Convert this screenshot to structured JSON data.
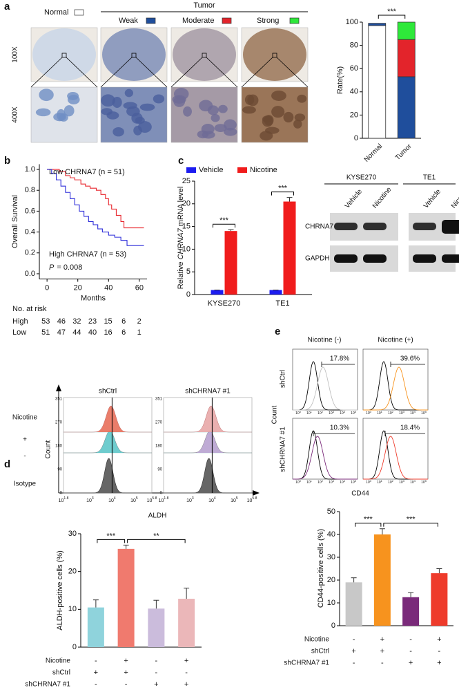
{
  "panel_labels": [
    "a",
    "b",
    "c",
    "d",
    "e"
  ],
  "ihc": {
    "tumor_header": "Tumor",
    "magnifications": [
      "100X",
      "400X"
    ]
  },
  "survival_risk": {
    "title": "No. at risk",
    "rows": [
      {
        "name": "High",
        "values": [
          53,
          46,
          32,
          23,
          15,
          6,
          2
        ]
      },
      {
        "name": "Low",
        "values": [
          51,
          47,
          44,
          40,
          16,
          6,
          1
        ]
      }
    ]
  },
  "blot": {
    "cell_lines": [
      "KYSE270",
      "TE1"
    ],
    "treatments": [
      "Vehicle",
      "Nicotine"
    ],
    "proteins": [
      "CHRNA7",
      "GAPDH"
    ]
  },
  "flow_aldh": {
    "columns": [
      "shCtrl",
      "shCHRNA7 #1"
    ],
    "rows": [
      "Nicotine",
      "+",
      "-",
      "Isotype"
    ],
    "ylabel": "Count",
    "xlabel": "ALDH",
    "yticks": [
      "0",
      "90",
      "180",
      "270",
      "351"
    ],
    "tick_base": "10",
    "tick_exponents": [
      "1.8",
      "3",
      "4",
      "5",
      "5.8"
    ]
  },
  "flow_cd44": {
    "columns": [
      "Nicotine (-)",
      "Nicotine (+)"
    ],
    "rows": [
      "shCtrl",
      "shCHRNA7 #1"
    ],
    "ylabel": "Count",
    "xlabel": "CD44",
    "gates": [
      "17.8%",
      "39.6%",
      "10.3%",
      "18.4%"
    ],
    "tick_base": "10",
    "tick_exponents": [
      "0",
      "1",
      "2",
      "3",
      "4",
      "5"
    ]
  },
  "chart_data": [
    {
      "type": "bar",
      "stacked": true,
      "ylabel": "Rate(%)",
      "categories": [
        "Normal",
        "Tumor"
      ],
      "series": [
        {
          "name": "Normal",
          "color": "#ffffff",
          "values": [
            97,
            0
          ]
        },
        {
          "name": "Weak",
          "color": "#1f4e9c",
          "values": [
            2,
            53
          ]
        },
        {
          "name": "Moderate",
          "color": "#e3242b",
          "values": [
            0,
            32
          ]
        },
        {
          "name": "Strong",
          "color": "#2ee83a",
          "values": [
            0,
            15
          ]
        }
      ],
      "ylim": [
        0,
        100
      ],
      "yticks": [
        0,
        20,
        40,
        60,
        80,
        100
      ],
      "grid": false,
      "comparisons": [
        {
          "label": "***",
          "categories": [
            0,
            1
          ]
        }
      ]
    },
    {
      "type": "line",
      "step": true,
      "xlabel": "Months",
      "ylabel": "Overall Survival",
      "series": [
        {
          "name": "Low CHRNA7 (n = 51)",
          "color": "#e8242b",
          "x": [
            0,
            8,
            12,
            15,
            18,
            22,
            25,
            28,
            32,
            35,
            38,
            40,
            42,
            45,
            48,
            50,
            63
          ],
          "values": [
            1.0,
            0.98,
            0.94,
            0.92,
            0.9,
            0.86,
            0.84,
            0.82,
            0.8,
            0.76,
            0.72,
            0.66,
            0.62,
            0.56,
            0.5,
            0.44,
            0.44
          ]
        },
        {
          "name": "High CHRNA7 (n = 53)",
          "color": "#2b2bd9",
          "x": [
            0,
            3,
            6,
            9,
            12,
            15,
            18,
            21,
            24,
            27,
            30,
            33,
            36,
            40,
            44,
            48,
            52,
            63
          ],
          "values": [
            1.0,
            0.96,
            0.9,
            0.84,
            0.78,
            0.72,
            0.66,
            0.6,
            0.55,
            0.5,
            0.47,
            0.43,
            0.4,
            0.37,
            0.35,
            0.32,
            0.27,
            0.27
          ]
        }
      ],
      "p_value": {
        "symbol": "P",
        "text": "= 0.008"
      },
      "xlim": [
        -5,
        65
      ],
      "xticks": [
        0,
        20,
        40,
        60
      ],
      "ylim": [
        -0.05,
        1.05
      ],
      "yticks": [
        {
          "value": 0,
          "label": "0.0"
        },
        0.2,
        0.4,
        0.6,
        0.8,
        {
          "value": 1,
          "label": "1.0"
        }
      ],
      "grid": false
    },
    {
      "type": "bar",
      "ylabel": [
        "Relative ",
        "CHRNA7",
        " mRNA level"
      ],
      "ylabel_italic": [
        false,
        true,
        false
      ],
      "categories": [
        "KYSE270",
        "TE1"
      ],
      "series": [
        {
          "name": "Vehicle",
          "color": "#1c1cf0",
          "values": [
            1,
            1
          ],
          "errors": [
            0,
            0
          ]
        },
        {
          "name": "Nicotine",
          "color": "#f01c1c",
          "values": [
            14,
            20.5
          ],
          "errors": [
            0.3,
            0.9
          ]
        }
      ],
      "ylim": [
        0,
        25
      ],
      "yticks": [
        0,
        5,
        10,
        15,
        20,
        25
      ],
      "grid": false,
      "comparisons": [
        {
          "label": "***",
          "categories": [
            0,
            0
          ]
        },
        {
          "label": "***",
          "categories": [
            1,
            1
          ]
        }
      ]
    },
    {
      "type": "bar",
      "ylabel": "ALDH-positive cells (%)",
      "categories": [
        null,
        null,
        null,
        null
      ],
      "values": [
        10.5,
        26,
        10.2,
        12.8
      ],
      "errors": [
        2,
        1,
        2.2,
        2.8
      ],
      "colors": [
        "#8fd3dc",
        "#f07a6e",
        "#cbbcdc",
        "#ebb7b9"
      ],
      "ylim": [
        0,
        30
      ],
      "yticks": [
        0,
        10,
        20,
        30
      ],
      "grid": false,
      "comparisons": [
        {
          "label": "***",
          "categories": [
            0,
            1
          ]
        },
        {
          "label": "**",
          "categories": [
            1,
            3
          ]
        }
      ],
      "conditions": [
        {
          "name": "Nicotine",
          "signs": [
            "-",
            "+",
            "-",
            "+"
          ]
        },
        {
          "name": "shCtrl",
          "signs": [
            "+",
            "+",
            "-",
            "-"
          ]
        },
        {
          "name": "shCHRNA7 #1",
          "signs": [
            "-",
            "-",
            "+",
            "+"
          ]
        }
      ]
    },
    {
      "type": "bar",
      "ylabel": "CD44-positive cells (%)",
      "categories": [
        null,
        null,
        null,
        null
      ],
      "values": [
        19,
        40,
        12.5,
        23
      ],
      "errors": [
        2,
        2.5,
        2,
        2
      ],
      "colors": [
        "#c8c8c8",
        "#f7931e",
        "#7a2a7a",
        "#ee3b2b"
      ],
      "ylim": [
        0,
        50
      ],
      "yticks": [
        0,
        10,
        20,
        30,
        40,
        50
      ],
      "grid": false,
      "comparisons": [
        {
          "label": "***",
          "categories": [
            0,
            1
          ]
        },
        {
          "label": "***",
          "categories": [
            1,
            3
          ]
        }
      ],
      "conditions": [
        {
          "name": "Nicotine",
          "signs": [
            "-",
            "+",
            "-",
            "+"
          ]
        },
        {
          "name": "shCtrl",
          "signs": [
            "+",
            "+",
            "-",
            "-"
          ]
        },
        {
          "name": "shCHRNA7 #1",
          "signs": [
            "-",
            "-",
            "+",
            "+"
          ]
        }
      ]
    }
  ]
}
